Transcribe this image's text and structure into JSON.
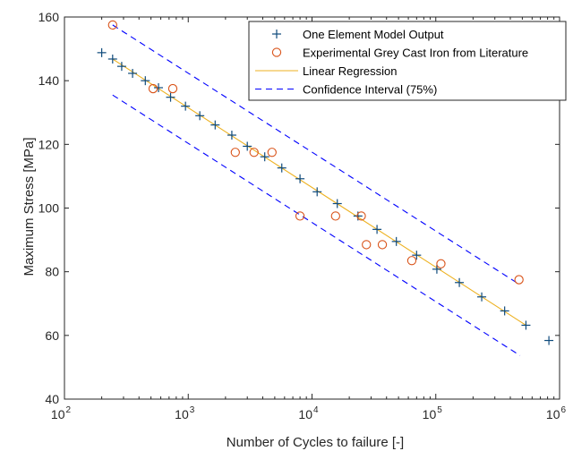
{
  "chart_data": {
    "type": "scatter",
    "xlabel": "Number of Cycles to failure [-]",
    "ylabel": "Maximum Stress [MPa]",
    "x_scale": "log",
    "xlim": [
      100,
      1000000
    ],
    "ylim": [
      40,
      160
    ],
    "x_ticks": [
      {
        "value": 100,
        "base": "10",
        "exp": "2"
      },
      {
        "value": 1000,
        "base": "10",
        "exp": "3"
      },
      {
        "value": 10000,
        "base": "10",
        "exp": "4"
      },
      {
        "value": 100000,
        "base": "10",
        "exp": "5"
      },
      {
        "value": 1000000,
        "base": "10",
        "exp": "6"
      }
    ],
    "y_ticks": [
      "40",
      "60",
      "80",
      "100",
      "120",
      "140",
      "160"
    ],
    "grid": false,
    "legend_placement": "top-right",
    "series": [
      {
        "name": "One Element Model Output",
        "marker": "plus",
        "color": "#0e4a7c",
        "points": [
          [
            200,
            148.8
          ],
          [
            245,
            146.8
          ],
          [
            290,
            144.5
          ],
          [
            355,
            142.3
          ],
          [
            450,
            140.0
          ],
          [
            575,
            137.8
          ],
          [
            720,
            134.8
          ],
          [
            950,
            132.0
          ],
          [
            1240,
            129.0
          ],
          [
            1650,
            126.1
          ],
          [
            2250,
            122.9
          ],
          [
            3000,
            119.4
          ],
          [
            4150,
            116.1
          ],
          [
            5700,
            112.6
          ],
          [
            8000,
            109.2
          ],
          [
            11000,
            105.1
          ],
          [
            16000,
            101.4
          ],
          [
            23500,
            97.5
          ],
          [
            33500,
            93.3
          ],
          [
            48000,
            89.5
          ],
          [
            70000,
            85.2
          ],
          [
            102000,
            80.8
          ],
          [
            155000,
            76.6
          ],
          [
            235000,
            72.1
          ],
          [
            360000,
            67.7
          ],
          [
            535000,
            63.2
          ],
          [
            820000,
            58.4
          ]
        ]
      },
      {
        "name": "Experimental Grey Cast Iron from Literature",
        "marker": "circle",
        "color": "#d95319",
        "points": [
          [
            245,
            157.5
          ],
          [
            520,
            137.5
          ],
          [
            750,
            137.5
          ],
          [
            2400,
            117.5
          ],
          [
            3400,
            117.5
          ],
          [
            4750,
            117.5
          ],
          [
            8000,
            97.5
          ],
          [
            15500,
            97.5
          ],
          [
            25000,
            97.5
          ],
          [
            27500,
            88.5
          ],
          [
            37000,
            88.5
          ],
          [
            64000,
            83.5
          ],
          [
            110000,
            82.5
          ],
          [
            470000,
            77.5
          ]
        ]
      },
      {
        "name": "Linear Regression",
        "type": "line",
        "style": "solid",
        "color": "#edb120",
        "points": [
          [
            245,
            146.8
          ],
          [
            535000,
            63.2
          ]
        ]
      },
      {
        "name": "Confidence Interval (75%)",
        "type": "line",
        "style": "dashed",
        "color": "#0000ff",
        "bands": [
          [
            [
              245,
              157.5
            ],
            [
              480000,
              75.9
            ]
          ],
          [
            [
              245,
              135.5
            ],
            [
              480000,
              53.7
            ]
          ]
        ]
      }
    ]
  }
}
